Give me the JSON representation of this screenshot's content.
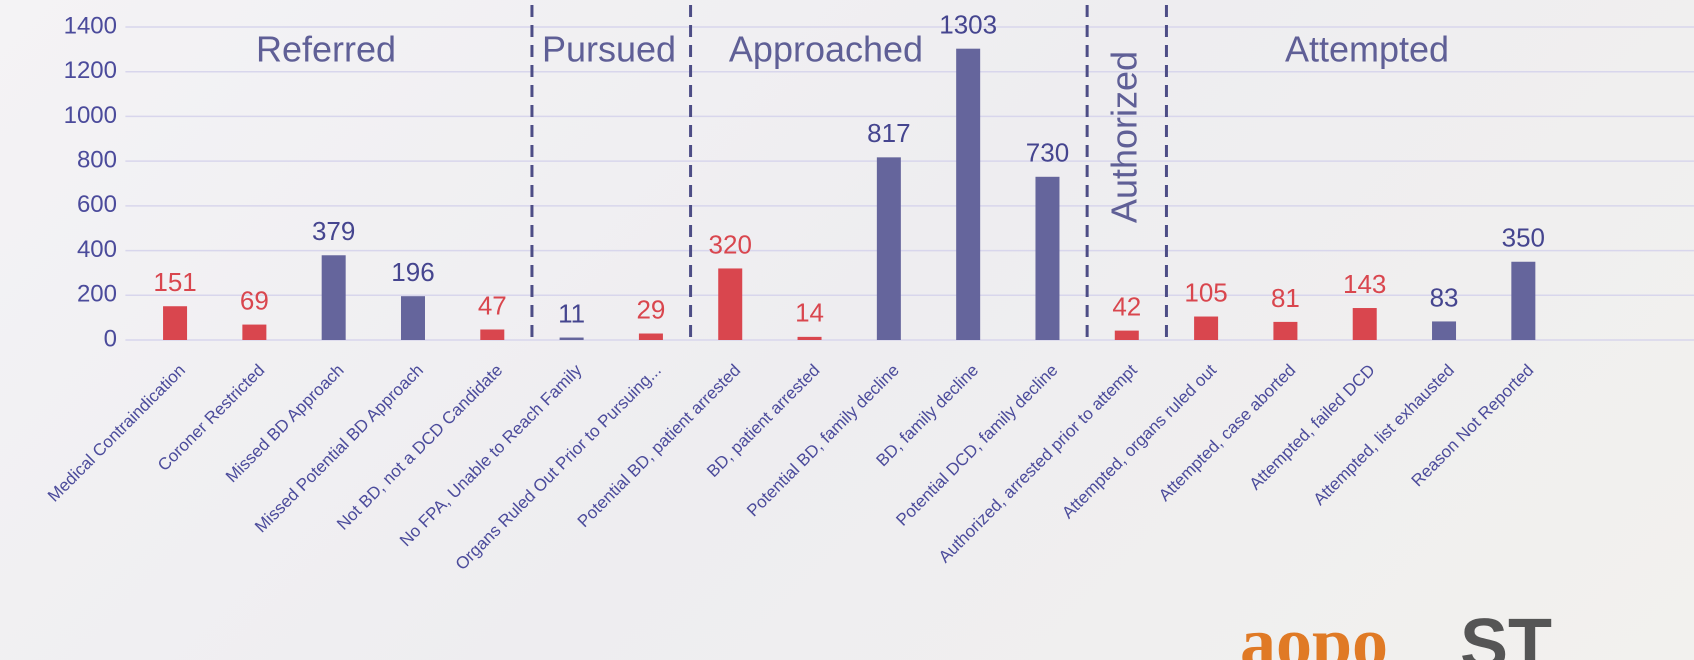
{
  "chart_data": {
    "type": "bar",
    "categories": [
      "Medical Contraindication",
      "Coroner Restricted",
      "Missed BD Approach",
      "Missed Potential BD Approach",
      "Not BD, not a DCD Candidate",
      "No FPA, Unable to Reach Family",
      "Organs Ruled Out Prior to Pursuing...",
      "Potential BD, patient arrested",
      "BD, patient arrested",
      "Potential BD, family decline",
      "BD, family decline",
      "Potential DCD, family decline",
      "Authorized, arrested prior to attempt",
      "Attempted, organs ruled out",
      "Attempted, case aborted",
      "Attempted, failed DCD",
      "Attempted, list exhausted",
      "Reason Not Reported"
    ],
    "values": [
      151,
      69,
      379,
      196,
      47,
      11,
      29,
      320,
      14,
      817,
      1303,
      730,
      42,
      105,
      81,
      143,
      83,
      350
    ],
    "colors": [
      "#d9464e",
      "#d9464e",
      "#65659c",
      "#65659c",
      "#d9464e",
      "#65659c",
      "#d9464e",
      "#d9464e",
      "#d9464e",
      "#65659c",
      "#65659c",
      "#65659c",
      "#d9464e",
      "#d9464e",
      "#d9464e",
      "#d9464e",
      "#65659c",
      "#65659c"
    ],
    "ylim": [
      0,
      1400
    ],
    "yticks": [
      0,
      200,
      400,
      600,
      800,
      1000,
      1200,
      1400
    ],
    "grid": true,
    "annotations": [
      "Referred",
      "Pursued",
      "Approached",
      "Authorized",
      "Attempted"
    ]
  },
  "logo": {
    "left": "aopo",
    "right": "ST"
  }
}
